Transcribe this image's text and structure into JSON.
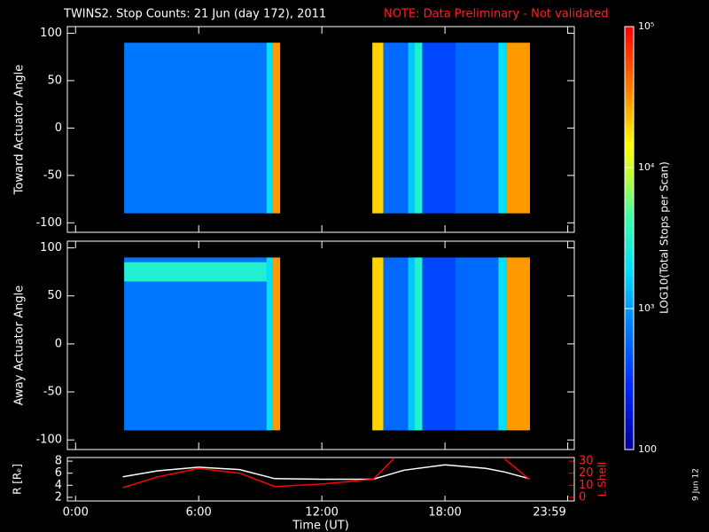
{
  "header": {
    "title": "TWINS2. Stop Counts: 21 Jun (day 172), 2011",
    "note": "NOTE: Data Preliminary - Not validated",
    "date_stamp": "9 Jun 12"
  },
  "colorbar": {
    "label": "LOG10(Total Stops per Scan)",
    "lim": [
      100,
      100000
    ],
    "log": true,
    "ticks": [
      {
        "value": 100000,
        "label": "10⁵"
      },
      {
        "value": 10000,
        "label": "10⁴"
      },
      {
        "value": 1000,
        "label": "10³"
      },
      {
        "value": 100,
        "label": "100"
      }
    ]
  },
  "chart_data": [
    {
      "type": "heatmap",
      "ylabel": "Toward Actuator Angle",
      "xlim": [
        -0.4,
        24.3
      ],
      "ylim": [
        -110,
        107
      ],
      "yticks": [
        100,
        50,
        0,
        -50,
        -100
      ],
      "cells": [
        {
          "x": [
            2.37,
            9.3
          ],
          "y": [
            -90,
            90
          ],
          "value": 700
        },
        {
          "x": [
            9.3,
            9.6
          ],
          "y": [
            -90,
            90
          ],
          "value": 2000
        },
        {
          "x": [
            9.6,
            9.97
          ],
          "y": [
            -90,
            90
          ],
          "value": 30000
        },
        {
          "x": [
            14.46,
            15.0
          ],
          "y": [
            -90,
            90
          ],
          "value": 20000
        },
        {
          "x": [
            15.0,
            16.2
          ],
          "y": [
            -90,
            90
          ],
          "value": 600
        },
        {
          "x": [
            16.2,
            16.5
          ],
          "y": [
            -90,
            90
          ],
          "value": 1500
        },
        {
          "x": [
            16.5,
            16.9
          ],
          "y": [
            -90,
            90
          ],
          "value": 3000
        },
        {
          "x": [
            16.9,
            18.5
          ],
          "y": [
            -90,
            90
          ],
          "value": 400
        },
        {
          "x": [
            18.5,
            20.6
          ],
          "y": [
            -90,
            90
          ],
          "value": 600
        },
        {
          "x": [
            20.6,
            21.0
          ],
          "y": [
            -90,
            90
          ],
          "value": 2000
        },
        {
          "x": [
            21.0,
            22.14
          ],
          "y": [
            -90,
            90
          ],
          "value": 30000
        }
      ]
    },
    {
      "type": "heatmap",
      "ylabel": "Away Actuator Angle",
      "xlim": [
        -0.4,
        24.3
      ],
      "ylim": [
        -110,
        107
      ],
      "yticks": [
        100,
        50,
        0,
        -50,
        -100
      ],
      "cells": [
        {
          "x": [
            2.37,
            9.3
          ],
          "y": [
            -90,
            90
          ],
          "value": 700
        },
        {
          "x": [
            2.37,
            9.6
          ],
          "y": [
            65,
            85
          ],
          "value": 3000
        },
        {
          "x": [
            9.3,
            9.6
          ],
          "y": [
            -90,
            90
          ],
          "value": 2000
        },
        {
          "x": [
            9.6,
            9.97
          ],
          "y": [
            -90,
            90
          ],
          "value": 30000
        },
        {
          "x": [
            14.46,
            15.0
          ],
          "y": [
            -90,
            90
          ],
          "value": 20000
        },
        {
          "x": [
            15.0,
            16.2
          ],
          "y": [
            -90,
            90
          ],
          "value": 600
        },
        {
          "x": [
            16.2,
            16.5
          ],
          "y": [
            -90,
            90
          ],
          "value": 1500
        },
        {
          "x": [
            16.5,
            16.9
          ],
          "y": [
            -90,
            90
          ],
          "value": 3000
        },
        {
          "x": [
            16.9,
            18.5
          ],
          "y": [
            -90,
            90
          ],
          "value": 400
        },
        {
          "x": [
            18.5,
            20.6
          ],
          "y": [
            -90,
            90
          ],
          "value": 600
        },
        {
          "x": [
            20.6,
            21.0
          ],
          "y": [
            -90,
            90
          ],
          "value": 2000
        },
        {
          "x": [
            21.0,
            22.14
          ],
          "y": [
            -90,
            90
          ],
          "value": 30000
        }
      ]
    },
    {
      "type": "line",
      "xlabel": "Time (UT)",
      "ylabel": "R [Rₑ]",
      "y2label": "L Shell",
      "xlim": [
        -0.4,
        24.3
      ],
      "ylim": [
        1.4,
        8.6
      ],
      "y2lim": [
        -3,
        33
      ],
      "xticks": [
        {
          "value": 0,
          "label": "0:00"
        },
        {
          "value": 6,
          "label": "6:00"
        },
        {
          "value": 12,
          "label": "12:00"
        },
        {
          "value": 18,
          "label": "18:00"
        },
        {
          "value": 23.98,
          "label": "23:59"
        }
      ],
      "yticks": [
        2,
        4,
        6,
        8
      ],
      "y2ticks": [
        0,
        10,
        20,
        30
      ],
      "x": [
        2.3,
        4,
        6,
        8,
        9.7,
        12,
        14.5,
        15.5,
        16,
        18,
        20,
        20.9,
        22.1
      ],
      "series": [
        {
          "color": "#ffffff",
          "values": [
            5.4,
            6.4,
            7.0,
            6.6,
            5.1,
            5.0,
            5.0,
            6.0,
            6.5,
            7.4,
            6.8,
            6.2,
            5.1
          ]
        },
        {
          "color": "#ff0000",
          "axis": "y2",
          "values": [
            8,
            17,
            24,
            20,
            9,
            11,
            15,
            32,
            null,
            null,
            null,
            32,
            15
          ]
        }
      ]
    }
  ]
}
